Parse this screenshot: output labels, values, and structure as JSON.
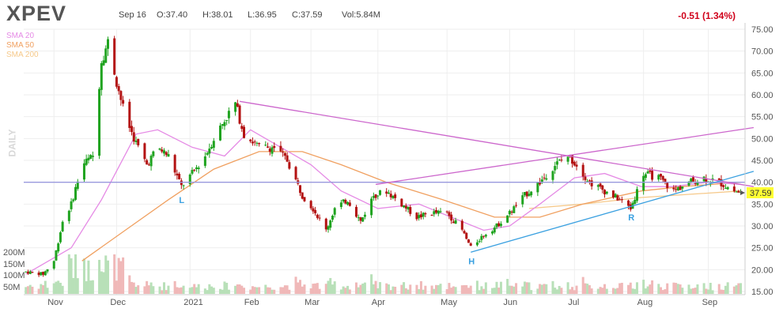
{
  "header": {
    "ticker": "XPEV",
    "date": "Sep 16",
    "open": "O:37.40",
    "high": "H:38.01",
    "low": "L:36.95",
    "close": "C:37.59",
    "volume": "Vol:5.84M",
    "change": "-0.51 (1.34%)"
  },
  "legend": [
    {
      "label": "SMA 20",
      "color": "#e58ae5"
    },
    {
      "label": "SMA 50",
      "color": "#f0a060"
    },
    {
      "label": "SMA 200",
      "color": "#f6c98a"
    }
  ],
  "side_label": "DAILY",
  "colors": {
    "up": "#1fa31f",
    "down": "#b31212",
    "hline": "#9999dd",
    "pink": "#cc66cc",
    "blue": "#3aa0e0",
    "last_price_bg": "#ffff33"
  },
  "chart_data": {
    "type": "candlestick",
    "y_ticks": [
      "75.00",
      "70.00",
      "65.00",
      "60.00",
      "55.00",
      "50.00",
      "45.00",
      "40.00",
      "35.00",
      "30.00",
      "25.00",
      "20.00",
      "15.00"
    ],
    "ylim": [
      15,
      75
    ],
    "volume_ticks": [
      "200M",
      "150M",
      "100M",
      "50M"
    ],
    "x_ticks": [
      "Nov",
      "Dec",
      "2021",
      "Feb",
      "Mar",
      "Apr",
      "May",
      "Jun",
      "Jul",
      "Aug",
      "Sep"
    ],
    "last_price": "37.59",
    "horizontal_line": 40,
    "price_path": [
      [
        "2020-10-20",
        19.5
      ],
      [
        "2020-10-28",
        19
      ],
      [
        "2020-11-02",
        22
      ],
      [
        "2020-11-06",
        31
      ],
      [
        "2020-11-10",
        35
      ],
      [
        "2020-11-15",
        44
      ],
      [
        "2020-11-20",
        46
      ],
      [
        "2020-11-24",
        68
      ],
      [
        "2020-11-27",
        72
      ],
      [
        "2020-12-01",
        63
      ],
      [
        "2020-12-05",
        55
      ],
      [
        "2020-12-10",
        49
      ],
      [
        "2020-12-15",
        44
      ],
      [
        "2020-12-20",
        48
      ],
      [
        "2020-12-25",
        46
      ],
      [
        "2020-12-31",
        39
      ],
      [
        "2021-01-05",
        42
      ],
      [
        "2021-01-11",
        46
      ],
      [
        "2021-01-16",
        51
      ],
      [
        "2021-01-21",
        55
      ],
      [
        "2021-01-25",
        58
      ],
      [
        "2021-01-29",
        51
      ],
      [
        "2021-02-05",
        48
      ],
      [
        "2021-02-12",
        48
      ],
      [
        "2021-02-18",
        45
      ],
      [
        "2021-02-25",
        37
      ],
      [
        "2021-03-02",
        34
      ],
      [
        "2021-03-08",
        29
      ],
      [
        "2021-03-12",
        34
      ],
      [
        "2021-03-18",
        36
      ],
      [
        "2021-03-24",
        31
      ],
      [
        "2021-03-30",
        37
      ],
      [
        "2021-04-05",
        38
      ],
      [
        "2021-04-12",
        35
      ],
      [
        "2021-04-19",
        32
      ],
      [
        "2021-04-26",
        33
      ],
      [
        "2021-05-03",
        33
      ],
      [
        "2021-05-10",
        29
      ],
      [
        "2021-05-14",
        25
      ],
      [
        "2021-05-20",
        28
      ],
      [
        "2021-05-26",
        30
      ],
      [
        "2021-06-01",
        33
      ],
      [
        "2021-06-08",
        37
      ],
      [
        "2021-06-15",
        40
      ],
      [
        "2021-06-22",
        44
      ],
      [
        "2021-06-28",
        46
      ],
      [
        "2021-07-02",
        44
      ],
      [
        "2021-07-08",
        40
      ],
      [
        "2021-07-15",
        38
      ],
      [
        "2021-07-22",
        36
      ],
      [
        "2021-07-27",
        34
      ],
      [
        "2021-08-02",
        42
      ],
      [
        "2021-08-09",
        41
      ],
      [
        "2021-08-16",
        38
      ],
      [
        "2021-08-23",
        40
      ],
      [
        "2021-08-30",
        41
      ],
      [
        "2021-09-06",
        40
      ],
      [
        "2021-09-13",
        38
      ],
      [
        "2021-09-16",
        37.59
      ]
    ],
    "sma20": [
      [
        "2020-10-20",
        19
      ],
      [
        "2020-11-10",
        25
      ],
      [
        "2020-11-24",
        36
      ],
      [
        "2020-12-10",
        51
      ],
      [
        "2020-12-20",
        52
      ],
      [
        "2021-01-05",
        48
      ],
      [
        "2021-01-20",
        46
      ],
      [
        "2021-02-01",
        52
      ],
      [
        "2021-02-15",
        48
      ],
      [
        "2021-03-01",
        44
      ],
      [
        "2021-03-15",
        38
      ],
      [
        "2021-04-01",
        34
      ],
      [
        "2021-04-20",
        35
      ],
      [
        "2021-05-10",
        31
      ],
      [
        "2021-05-20",
        29
      ],
      [
        "2021-06-01",
        30
      ],
      [
        "2021-06-15",
        35
      ],
      [
        "2021-07-01",
        41
      ],
      [
        "2021-07-15",
        42
      ],
      [
        "2021-08-01",
        39
      ],
      [
        "2021-08-15",
        39
      ],
      [
        "2021-09-01",
        40
      ],
      [
        "2021-09-16",
        39.5
      ]
    ],
    "sma50": [
      [
        "2020-11-15",
        22
      ],
      [
        "2020-12-05",
        29
      ],
      [
        "2020-12-25",
        36
      ],
      [
        "2021-01-15",
        43
      ],
      [
        "2021-02-05",
        47
      ],
      [
        "2021-02-25",
        47
      ],
      [
        "2021-03-15",
        44
      ],
      [
        "2021-04-05",
        40
      ],
      [
        "2021-05-01",
        36
      ],
      [
        "2021-05-25",
        32
      ],
      [
        "2021-06-15",
        32
      ],
      [
        "2021-07-05",
        35
      ],
      [
        "2021-08-01",
        38
      ],
      [
        "2021-08-20",
        39
      ],
      [
        "2021-09-16",
        40
      ]
    ],
    "sma200": [
      [
        "2021-06-10",
        34
      ],
      [
        "2021-07-05",
        35
      ],
      [
        "2021-08-01",
        36.5
      ],
      [
        "2021-09-16",
        38
      ]
    ],
    "trendlines": [
      {
        "color": "pink",
        "points": [
          [
            "2021-01-27",
            58.5
          ],
          [
            "2021-09-22",
            39
          ]
        ]
      },
      {
        "color": "pink",
        "points": [
          [
            "2021-03-31",
            39.5
          ],
          [
            "2021-09-22",
            52.5
          ]
        ]
      },
      {
        "color": "blue",
        "points": [
          [
            "2021-05-14",
            24
          ],
          [
            "2021-09-22",
            42.5
          ]
        ]
      }
    ],
    "annotations": [
      {
        "label": "L",
        "date": "2020-12-31",
        "price": 36,
        "color": "blue"
      },
      {
        "label": "H",
        "date": "2021-05-14",
        "price": 22,
        "color": "blue"
      },
      {
        "label": "R",
        "date": "2021-07-27",
        "price": 32,
        "color": "blue"
      }
    ]
  }
}
